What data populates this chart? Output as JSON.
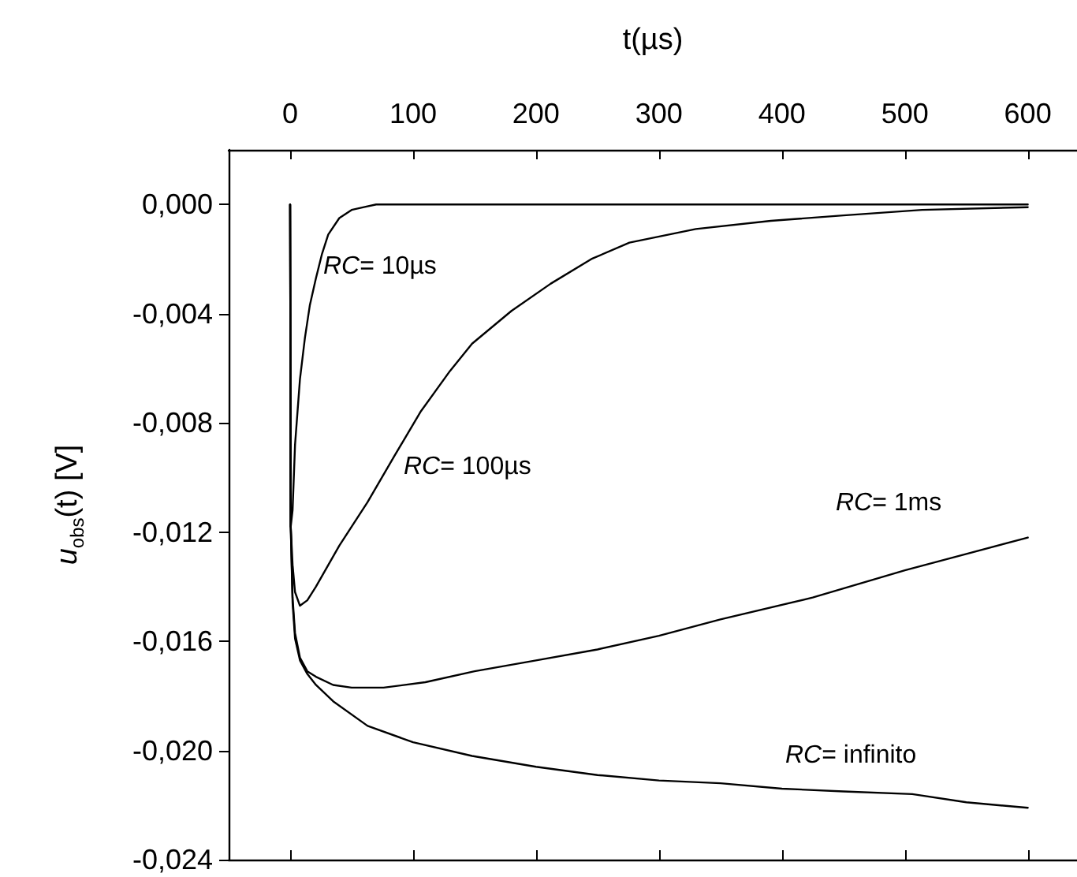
{
  "chart_data": {
    "type": "line",
    "xlabel": "t(µs)",
    "ylabel": "u$_{obs}$(t) [V]",
    "xlim": [
      -50,
      640
    ],
    "xticks": [
      0,
      100,
      200,
      300,
      400,
      500,
      600
    ],
    "ylim": [
      -0.024,
      0.002
    ],
    "yticks": [
      {
        "value": -0.024,
        "label": "-0,024"
      },
      {
        "value": -0.02,
        "label": "-0,020"
      },
      {
        "value": -0.016,
        "label": "-0,016"
      },
      {
        "value": -0.012,
        "label": "-0,012"
      },
      {
        "value": -0.008,
        "label": "-0,008"
      },
      {
        "value": -0.004,
        "label": "-0,004"
      },
      {
        "value": 0,
        "label": "0,000"
      }
    ],
    "grid": false,
    "marker": "none",
    "line_style": "solid",
    "series": [
      {
        "color": "#000000",
        "x": [
          0,
          0.5,
          2,
          4,
          8,
          12,
          16,
          21,
          26,
          31,
          40,
          50,
          60,
          70,
          100,
          200,
          400,
          600
        ],
        "values": [
          0,
          -0.0118,
          -0.0112,
          -0.0088,
          -0.0064,
          -0.0049,
          -0.0037,
          -0.0027,
          -0.0018,
          -0.0011,
          -0.0005,
          -0.0002,
          -0.0001,
          0,
          0,
          0,
          0,
          0
        ]
      },
      {
        "color": "#000000",
        "x": [
          0,
          0.5,
          2,
          4,
          8,
          14,
          21,
          40,
          63,
          85,
          106,
          130,
          148,
          180,
          212,
          245,
          276,
          330,
          391,
          450,
          514,
          600
        ],
        "values": [
          0,
          -0.0118,
          -0.0132,
          -0.0142,
          -0.0147,
          -0.0145,
          -0.014,
          -0.0125,
          -0.0109,
          -0.0092,
          -0.0076,
          -0.0061,
          -0.0051,
          -0.0039,
          -0.0029,
          -0.002,
          -0.0014,
          -0.0009,
          -0.0006,
          -0.0004,
          -0.0002,
          -0.0001
        ]
      },
      {
        "color": "#000000",
        "x": [
          0,
          0.5,
          2,
          4,
          8,
          14,
          21,
          35,
          50,
          76,
          110,
          150,
          200,
          250,
          300,
          350,
          425,
          500,
          550,
          600
        ],
        "values": [
          0,
          -0.0118,
          -0.0144,
          -0.0157,
          -0.0166,
          -0.0171,
          -0.0173,
          -0.0176,
          -0.0177,
          -0.0177,
          -0.0175,
          -0.0171,
          -0.0167,
          -0.0163,
          -0.0158,
          -0.0152,
          -0.0144,
          -0.0134,
          -0.0128,
          -0.0122
        ]
      },
      {
        "color": "#000000",
        "x": [
          0,
          0.5,
          2,
          4,
          8,
          14,
          21,
          35,
          63,
          100,
          148,
          200,
          250,
          300,
          350,
          400,
          450,
          506,
          550,
          600
        ],
        "values": [
          0,
          -0.0118,
          -0.0146,
          -0.0159,
          -0.0167,
          -0.0172,
          -0.0176,
          -0.0182,
          -0.0191,
          -0.0197,
          -0.0202,
          -0.0206,
          -0.0209,
          -0.0211,
          -0.0212,
          -0.0214,
          -0.0215,
          -0.0216,
          -0.0219,
          -0.0221
        ]
      }
    ],
    "annotations": [
      "RC= 10µs",
      "RC= 100µs",
      "RC= 1ms",
      "RC= infinito"
    ]
  }
}
